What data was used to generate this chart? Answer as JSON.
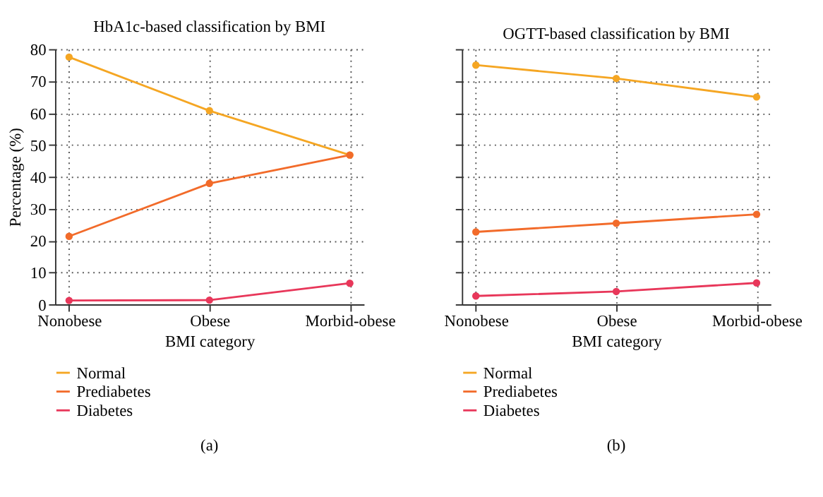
{
  "chart_data": [
    {
      "type": "line",
      "title": "HbA1c-based classification by BMI",
      "xlabel": "BMI category",
      "ylabel": "Percentage (%)",
      "categories": [
        "Nonobese",
        "Obese",
        "Morbid-obese"
      ],
      "series": [
        {
          "name": "Normal",
          "color": "#f5a623",
          "values": [
            77.5,
            60.7,
            46.8
          ]
        },
        {
          "name": "Prediabetes",
          "color": "#f26b2a",
          "values": [
            21.3,
            37.9,
            46.8
          ]
        },
        {
          "name": "Diabetes",
          "color": "#e8375a",
          "values": [
            1.2,
            1.3,
            6.6
          ]
        }
      ],
      "ylim": [
        0,
        80
      ],
      "yticks": [
        0,
        10,
        20,
        30,
        40,
        50,
        60,
        70,
        80
      ],
      "grid": true,
      "legend": "bottom left",
      "marker": "circle",
      "line_style": "solid",
      "annotations": [
        "(a)"
      ]
    },
    {
      "type": "line",
      "title": "OGTT-based classification by BMI",
      "xlabel": "BMI category",
      "categories": [
        "Nonobese",
        "Obese",
        "Morbid-obese"
      ],
      "series": [
        {
          "name": "Normal",
          "color": "#f5a623",
          "values": [
            75.0,
            70.8,
            65.0
          ]
        },
        {
          "name": "Prediabetes",
          "color": "#f26b2a",
          "values": [
            22.7,
            25.4,
            28.2
          ]
        },
        {
          "name": "Diabetes",
          "color": "#e8375a",
          "values": [
            2.6,
            4.0,
            6.7
          ]
        }
      ],
      "ylim": [
        0,
        80
      ],
      "yticks": [
        0,
        10,
        20,
        30,
        40,
        50,
        60,
        70,
        80
      ],
      "tick_labels": "x",
      "grid": true,
      "legend": "bottom left",
      "marker": "circle",
      "line_style": "solid",
      "annotations": [
        "(b)"
      ]
    }
  ]
}
